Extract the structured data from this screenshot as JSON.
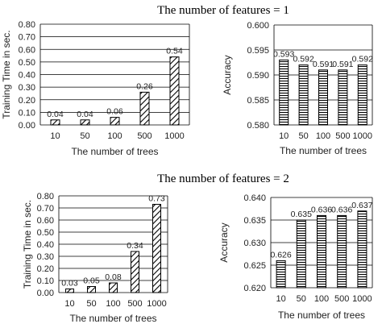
{
  "section_titles": [
    "The number of features = 1",
    "The number of features = 2"
  ],
  "chart_data": [
    {
      "type": "bar",
      "pattern": "diagonal",
      "categories": [
        "10",
        "50",
        "100",
        "500",
        "1000"
      ],
      "values": [
        0.04,
        0.04,
        0.06,
        0.26,
        0.54
      ],
      "data_labels": [
        "0.04",
        "0.04",
        "0.06",
        "0.26",
        "0.54"
      ],
      "xlabel": "The number of trees",
      "ylabel": "Training Time in sec.",
      "ylim": [
        0,
        0.8
      ],
      "ticks": [
        "0.00",
        "0.10",
        "0.20",
        "0.30",
        "0.40",
        "0.50",
        "0.60",
        "0.70",
        "0.80"
      ],
      "grid": true
    },
    {
      "type": "bar",
      "pattern": "horizontal",
      "categories": [
        "10",
        "50",
        "100",
        "500",
        "1000"
      ],
      "values": [
        0.593,
        0.592,
        0.591,
        0.591,
        0.592
      ],
      "data_labels": [
        "0.593",
        "0.592",
        "0.591",
        "0.591",
        "0.592"
      ],
      "xlabel": "The number of trees",
      "ylabel": "Accuracy",
      "ylim": [
        0.58,
        0.6
      ],
      "ticks": [
        "0.580",
        "0.585",
        "0.590",
        "0.595",
        "0.600"
      ],
      "grid": true
    },
    {
      "type": "bar",
      "pattern": "diagonal",
      "categories": [
        "10",
        "50",
        "100",
        "500",
        "1000"
      ],
      "values": [
        0.03,
        0.05,
        0.08,
        0.34,
        0.73
      ],
      "data_labels": [
        "0.03",
        "0.05",
        "0.08",
        "0.34",
        "0.73"
      ],
      "xlabel": "The number of trees",
      "ylabel": "Training Time in sec.",
      "ylim": [
        0,
        0.8
      ],
      "ticks": [
        "0.00",
        "0.10",
        "0.20",
        "0.30",
        "0.40",
        "0.50",
        "0.60",
        "0.70",
        "0.80"
      ],
      "grid": true
    },
    {
      "type": "bar",
      "pattern": "horizontal",
      "categories": [
        "10",
        "50",
        "100",
        "500",
        "1000"
      ],
      "values": [
        0.626,
        0.635,
        0.636,
        0.636,
        0.637
      ],
      "data_labels": [
        "0.626",
        "0.635",
        "0.636",
        "0.636",
        "0.637"
      ],
      "xlabel": "The number of trees",
      "ylabel": "Accuracy",
      "ylim": [
        0.62,
        0.64
      ],
      "ticks": [
        "0.620",
        "0.625",
        "0.630",
        "0.635",
        "0.640"
      ],
      "grid": true
    }
  ]
}
